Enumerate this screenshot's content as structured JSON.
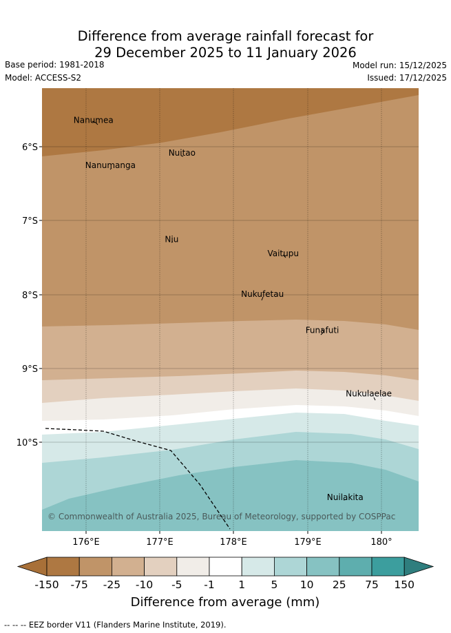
{
  "title_line1": "Difference from average rainfall forecast for",
  "title_line2": "29 December 2025 to 11 January 2026",
  "base_period": "Base period: 1981-2018",
  "model": "Model: ACCESS-S2",
  "model_run": "Model run: 15/12/2025",
  "issued": "Issued: 17/12/2025",
  "places": [
    {
      "name": "Nanumea",
      "lon": 176.1,
      "lat": -5.68
    },
    {
      "name": "Nuitao",
      "lon": 177.3,
      "lat": -6.12
    },
    {
      "name": "Nanumanga",
      "lon": 176.33,
      "lat": -6.29
    },
    {
      "name": "Niu",
      "lon": 177.16,
      "lat": -7.29
    },
    {
      "name": "Vaitupu",
      "lon": 178.67,
      "lat": -7.48
    },
    {
      "name": "Nukufetau",
      "lon": 178.39,
      "lat": -8.03
    },
    {
      "name": "Funafuti",
      "lon": 179.2,
      "lat": -8.52
    },
    {
      "name": "Nukulaelae",
      "lon": 179.83,
      "lat": -9.38
    },
    {
      "name": "Nuilakita",
      "lon": 179.51,
      "lat": -10.78
    }
  ],
  "lat_ticks": [
    "6°S",
    "7°S",
    "8°S",
    "9°S",
    "10°S"
  ],
  "lon_ticks": [
    "176°E",
    "177°E",
    "178°E",
    "179°E",
    "180°"
  ],
  "copyright": "© Commonwealth of Australia 2025, Bureau of Meteorology, supported by COSPPac",
  "colorbar": {
    "title": "Difference from average (mm)",
    "labels": [
      "-150",
      "-75",
      "-25",
      "-10",
      "-5",
      "-1",
      "1",
      "5",
      "10",
      "25",
      "75",
      "150"
    ],
    "colors": [
      "#a87038",
      "#ae7842",
      "#c09468",
      "#d2b090",
      "#e3d0bf",
      "#f1ede8",
      "#ffffff",
      "#d6e9e8",
      "#add6d6",
      "#86c2c2",
      "#5eaeae",
      "#3c9e9e",
      "#2f7e7e"
    ]
  },
  "footer": "-- -- -- EEZ border V11 (Flanders Marine Institute, 2019)."
}
